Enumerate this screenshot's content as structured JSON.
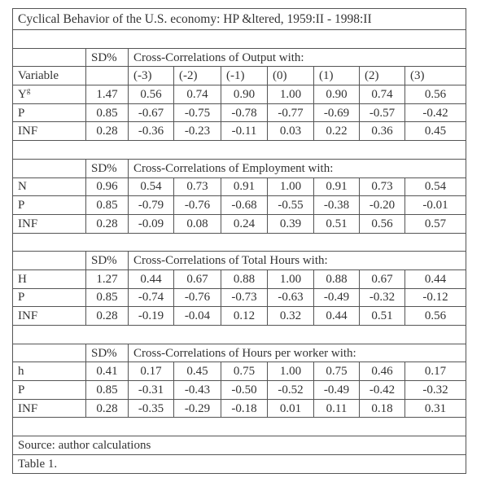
{
  "title": "Cyclical Behavior of the U.S. economy: HP &ltered, 1959:II - 1998:II",
  "sections": [
    {
      "sd_label": "SD%",
      "heading": "Cross-Correlations of Output with:",
      "lag_header": "Variable",
      "lags": [
        "(-3)",
        "(-2)",
        "(-1)",
        "(0)",
        "(1)",
        "(2)",
        "(3)"
      ],
      "rows": [
        {
          "variable": "Y",
          "superscript": "g",
          "sd": "1.47",
          "values": [
            "0.56",
            "0.74",
            "0.90",
            "1.00",
            "0.90",
            "0.74",
            "0.56"
          ]
        },
        {
          "variable": "P",
          "sd": "0.85",
          "values": [
            "-0.67",
            "-0.75",
            "-0.78",
            "-0.77",
            "-0.69",
            "-0.57",
            "-0.42"
          ]
        },
        {
          "variable": "INF",
          "sd": "0.28",
          "values": [
            "-0.36",
            "-0.23",
            "-0.11",
            "0.03",
            "0.22",
            "0.36",
            "0.45"
          ]
        }
      ]
    },
    {
      "sd_label": "SD%",
      "heading": "Cross-Correlations of Employment with:",
      "rows": [
        {
          "variable": "N",
          "sd": "0.96",
          "values": [
            "0.54",
            "0.73",
            "0.91",
            "1.00",
            "0.91",
            "0.73",
            "0.54"
          ]
        },
        {
          "variable": "P",
          "sd": "0.85",
          "values": [
            "-0.79",
            "-0.76",
            "-0.68",
            "-0.55",
            "-0.38",
            "-0.20",
            "-0.01"
          ]
        },
        {
          "variable": "INF",
          "sd": "0.28",
          "values": [
            "-0.09",
            "0.08",
            "0.24",
            "0.39",
            "0.51",
            "0.56",
            "0.57"
          ]
        }
      ]
    },
    {
      "sd_label": "SD%",
      "heading": "Cross-Correlations of Total Hours with:",
      "rows": [
        {
          "variable": "H",
          "sd": "1.27",
          "values": [
            "0.44",
            "0.67",
            "0.88",
            "1.00",
            "0.88",
            "0.67",
            "0.44"
          ]
        },
        {
          "variable": "P",
          "sd": "0.85",
          "values": [
            "-0.74",
            "-0.76",
            "-0.73",
            "-0.63",
            "-0.49",
            "-0.32",
            "-0.12"
          ]
        },
        {
          "variable": "INF",
          "sd": "0.28",
          "values": [
            "-0.19",
            "-0.04",
            "0.12",
            "0.32",
            "0.44",
            "0.51",
            "0.56"
          ]
        }
      ]
    },
    {
      "sd_label": "SD%",
      "heading": "Cross-Correlations of Hours per worker with:",
      "rows": [
        {
          "variable": "h",
          "sd": "0.41",
          "values": [
            "0.17",
            "0.45",
            "0.75",
            "1.00",
            "0.75",
            "0.46",
            "0.17"
          ]
        },
        {
          "variable": "P",
          "sd": "0.85",
          "values": [
            "-0.31",
            "-0.43",
            "-0.50",
            "-0.52",
            "-0.49",
            "-0.42",
            "-0.32"
          ]
        },
        {
          "variable": "INF",
          "sd": "0.28",
          "values": [
            "-0.35",
            "-0.29",
            "-0.18",
            "0.01",
            "0.11",
            "0.18",
            "0.31"
          ]
        }
      ]
    }
  ],
  "source": "Source: author calculations",
  "caption": "Table 1."
}
